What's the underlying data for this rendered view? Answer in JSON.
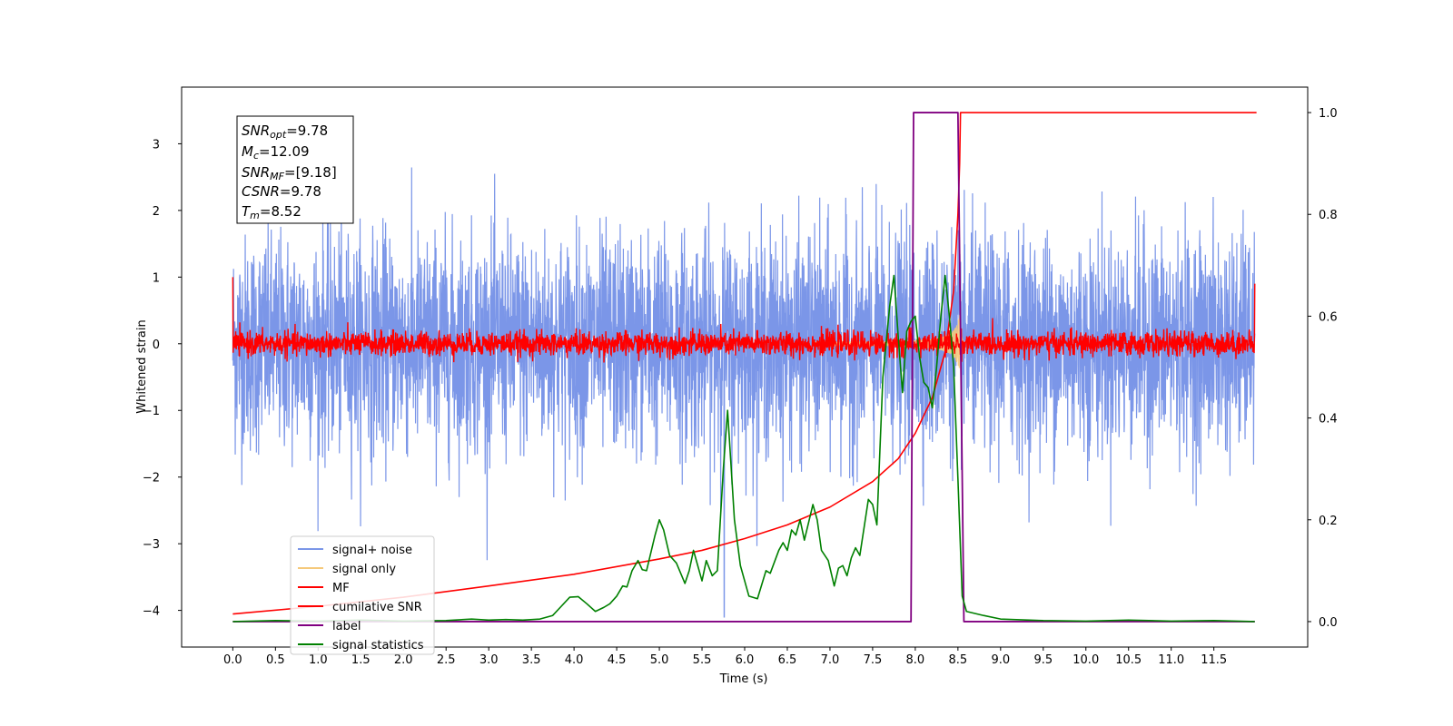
{
  "chart_data": {
    "type": "line",
    "xlabel": "Time (s)",
    "ylabel": "Whitened strain",
    "xlim": [
      -0.6,
      12.6
    ],
    "ylim": [
      -4.55,
      3.85
    ],
    "ylim_right": [
      -0.05,
      1.05
    ],
    "x_ticks": [
      "0.0",
      "0.5",
      "1.0",
      "1.5",
      "2.0",
      "2.5",
      "3.0",
      "3.5",
      "4.0",
      "4.5",
      "5.0",
      "5.5",
      "6.0",
      "6.5",
      "7.0",
      "7.5",
      "8.0",
      "8.5",
      "9.0",
      "9.5",
      "10.0",
      "10.5",
      "11.0",
      "11.5"
    ],
    "y_ticks": [
      "3",
      "2",
      "1",
      "0",
      "−1",
      "−2",
      "−3",
      "−4"
    ],
    "y_ticks_right": [
      "1.0",
      "0.8",
      "0.6",
      "0.4",
      "0.2",
      "0.0"
    ],
    "annotation": {
      "snr_opt": {
        "sym": "SNR",
        "sub": "opt",
        "value": "=9.78"
      },
      "mc": {
        "sym": "M",
        "sub": "c",
        "value": "=12.09"
      },
      "snr_mf": {
        "sym": "SNR",
        "sub": "MF",
        "value": "=[9.18]"
      },
      "csnr": {
        "sym": "CSNR",
        "value": "=9.78"
      },
      "tm": {
        "sym": "T",
        "sub": "m",
        "value": "=8.52"
      }
    },
    "legend_position": "lower-left",
    "series": [
      {
        "name": "signal+ noise",
        "color": "#7b96e8",
        "axis": "left",
        "envelope": {
          "x_range": [
            0,
            11.98
          ],
          "noise_std": 0.85,
          "max_abs": 3.5
        }
      },
      {
        "name": "signal only",
        "color": "#f5c97a",
        "axis": "left",
        "chirp": {
          "merger_time": 8.52,
          "peak_amplitude": 0.45
        }
      },
      {
        "name": "MF",
        "color": "#ff0000",
        "axis": "left",
        "envelope": {
          "x_range": [
            0,
            11.98
          ],
          "noise_std": 0.09,
          "start_spike": 1.0,
          "end_spike": 0.9
        }
      },
      {
        "name": "cumilative SNR",
        "color": "#ff0000",
        "axis": "right",
        "points": [
          [
            0,
            0.015
          ],
          [
            1,
            0.03
          ],
          [
            2,
            0.048
          ],
          [
            3,
            0.07
          ],
          [
            4,
            0.093
          ],
          [
            5,
            0.123
          ],
          [
            5.5,
            0.14
          ],
          [
            6,
            0.163
          ],
          [
            6.5,
            0.19
          ],
          [
            7,
            0.225
          ],
          [
            7.5,
            0.275
          ],
          [
            7.8,
            0.32
          ],
          [
            8.0,
            0.37
          ],
          [
            8.2,
            0.44
          ],
          [
            8.35,
            0.53
          ],
          [
            8.45,
            0.65
          ],
          [
            8.5,
            0.8
          ],
          [
            8.52,
            0.9
          ],
          [
            8.53,
            1.0
          ],
          [
            12.0,
            1.0
          ]
        ]
      },
      {
        "name": "label",
        "color": "#800080",
        "axis": "right",
        "points": [
          [
            0,
            0.0
          ],
          [
            7.95,
            0.0
          ],
          [
            7.98,
            1.0
          ],
          [
            8.5,
            1.0
          ],
          [
            8.57,
            0.0
          ],
          [
            11.98,
            0.0
          ]
        ]
      },
      {
        "name": "signal statistics",
        "color": "#008000",
        "axis": "right",
        "points": [
          [
            0,
            0.0
          ],
          [
            0.5,
            0.002
          ],
          [
            1.0,
            0.001
          ],
          [
            1.5,
            0.003
          ],
          [
            2.0,
            0.001
          ],
          [
            2.5,
            0.002
          ],
          [
            2.8,
            0.005
          ],
          [
            3.0,
            0.003
          ],
          [
            3.2,
            0.004
          ],
          [
            3.4,
            0.003
          ],
          [
            3.6,
            0.005
          ],
          [
            3.75,
            0.012
          ],
          [
            3.85,
            0.03
          ],
          [
            3.95,
            0.048
          ],
          [
            4.05,
            0.049
          ],
          [
            4.15,
            0.035
          ],
          [
            4.25,
            0.02
          ],
          [
            4.35,
            0.028
          ],
          [
            4.42,
            0.035
          ],
          [
            4.5,
            0.05
          ],
          [
            4.57,
            0.07
          ],
          [
            4.62,
            0.068
          ],
          [
            4.68,
            0.1
          ],
          [
            4.75,
            0.12
          ],
          [
            4.8,
            0.102
          ],
          [
            4.85,
            0.1
          ],
          [
            4.95,
            0.17
          ],
          [
            5.0,
            0.2
          ],
          [
            5.05,
            0.18
          ],
          [
            5.12,
            0.13
          ],
          [
            5.2,
            0.115
          ],
          [
            5.3,
            0.075
          ],
          [
            5.35,
            0.1
          ],
          [
            5.4,
            0.14
          ],
          [
            5.45,
            0.11
          ],
          [
            5.5,
            0.08
          ],
          [
            5.55,
            0.12
          ],
          [
            5.62,
            0.09
          ],
          [
            5.68,
            0.1
          ],
          [
            5.75,
            0.3
          ],
          [
            5.8,
            0.415
          ],
          [
            5.88,
            0.2
          ],
          [
            5.95,
            0.11
          ],
          [
            6.05,
            0.05
          ],
          [
            6.15,
            0.045
          ],
          [
            6.25,
            0.1
          ],
          [
            6.3,
            0.095
          ],
          [
            6.4,
            0.14
          ],
          [
            6.45,
            0.155
          ],
          [
            6.5,
            0.14
          ],
          [
            6.55,
            0.18
          ],
          [
            6.6,
            0.17
          ],
          [
            6.65,
            0.2
          ],
          [
            6.7,
            0.16
          ],
          [
            6.8,
            0.23
          ],
          [
            6.85,
            0.2
          ],
          [
            6.9,
            0.14
          ],
          [
            6.98,
            0.12
          ],
          [
            7.05,
            0.07
          ],
          [
            7.1,
            0.105
          ],
          [
            7.15,
            0.11
          ],
          [
            7.2,
            0.09
          ],
          [
            7.25,
            0.125
          ],
          [
            7.3,
            0.145
          ],
          [
            7.35,
            0.13
          ],
          [
            7.45,
            0.24
          ],
          [
            7.5,
            0.23
          ],
          [
            7.55,
            0.19
          ],
          [
            7.62,
            0.48
          ],
          [
            7.7,
            0.62
          ],
          [
            7.75,
            0.68
          ],
          [
            7.8,
            0.56
          ],
          [
            7.85,
            0.45
          ],
          [
            7.9,
            0.57
          ],
          [
            7.95,
            0.59
          ],
          [
            8.0,
            0.6
          ],
          [
            8.05,
            0.52
          ],
          [
            8.1,
            0.47
          ],
          [
            8.15,
            0.46
          ],
          [
            8.2,
            0.42
          ],
          [
            8.25,
            0.5
          ],
          [
            8.3,
            0.6
          ],
          [
            8.35,
            0.68
          ],
          [
            8.4,
            0.6
          ],
          [
            8.45,
            0.5
          ],
          [
            8.5,
            0.28
          ],
          [
            8.55,
            0.05
          ],
          [
            8.6,
            0.02
          ],
          [
            8.8,
            0.012
          ],
          [
            9.0,
            0.005
          ],
          [
            9.5,
            0.002
          ],
          [
            10.0,
            0.001
          ],
          [
            10.5,
            0.003
          ],
          [
            11.0,
            0.001
          ],
          [
            11.5,
            0.002
          ],
          [
            11.98,
            0.0
          ]
        ]
      }
    ]
  }
}
